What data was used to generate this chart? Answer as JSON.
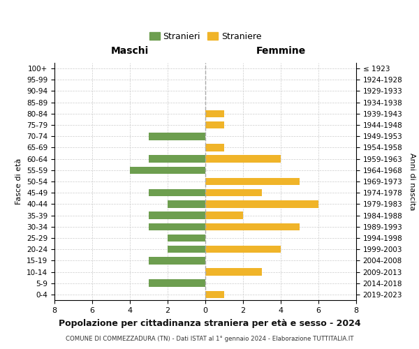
{
  "age_groups": [
    "100+",
    "95-99",
    "90-94",
    "85-89",
    "80-84",
    "75-79",
    "70-74",
    "65-69",
    "60-64",
    "55-59",
    "50-54",
    "45-49",
    "40-44",
    "35-39",
    "30-34",
    "25-29",
    "20-24",
    "15-19",
    "10-14",
    "5-9",
    "0-4"
  ],
  "birth_years": [
    "≤ 1923",
    "1924-1928",
    "1929-1933",
    "1934-1938",
    "1939-1943",
    "1944-1948",
    "1949-1953",
    "1954-1958",
    "1959-1963",
    "1964-1968",
    "1969-1973",
    "1974-1978",
    "1979-1983",
    "1984-1988",
    "1989-1993",
    "1994-1998",
    "1999-2003",
    "2004-2008",
    "2009-2013",
    "2014-2018",
    "2019-2023"
  ],
  "maschi": [
    0,
    0,
    0,
    0,
    0,
    0,
    3,
    0,
    3,
    4,
    0,
    3,
    2,
    3,
    3,
    2,
    2,
    3,
    0,
    3,
    0
  ],
  "femmine": [
    0,
    0,
    0,
    0,
    1,
    1,
    0,
    1,
    4,
    0,
    5,
    3,
    6,
    2,
    5,
    0,
    4,
    0,
    3,
    0,
    1
  ],
  "maschi_color": "#6d9e4f",
  "femmine_color": "#f0b429",
  "title": "Popolazione per cittadinanza straniera per età e sesso - 2024",
  "subtitle": "COMUNE DI COMMEZZADURA (TN) - Dati ISTAT al 1° gennaio 2024 - Elaborazione TUTTITALIA.IT",
  "xlabel_left": "Maschi",
  "xlabel_right": "Femmine",
  "ylabel_left": "Fasce di età",
  "ylabel_right": "Anni di nascita",
  "legend_maschi": "Stranieri",
  "legend_femmine": "Straniere",
  "xlim": 8,
  "background_color": "#ffffff",
  "grid_color": "#cccccc"
}
